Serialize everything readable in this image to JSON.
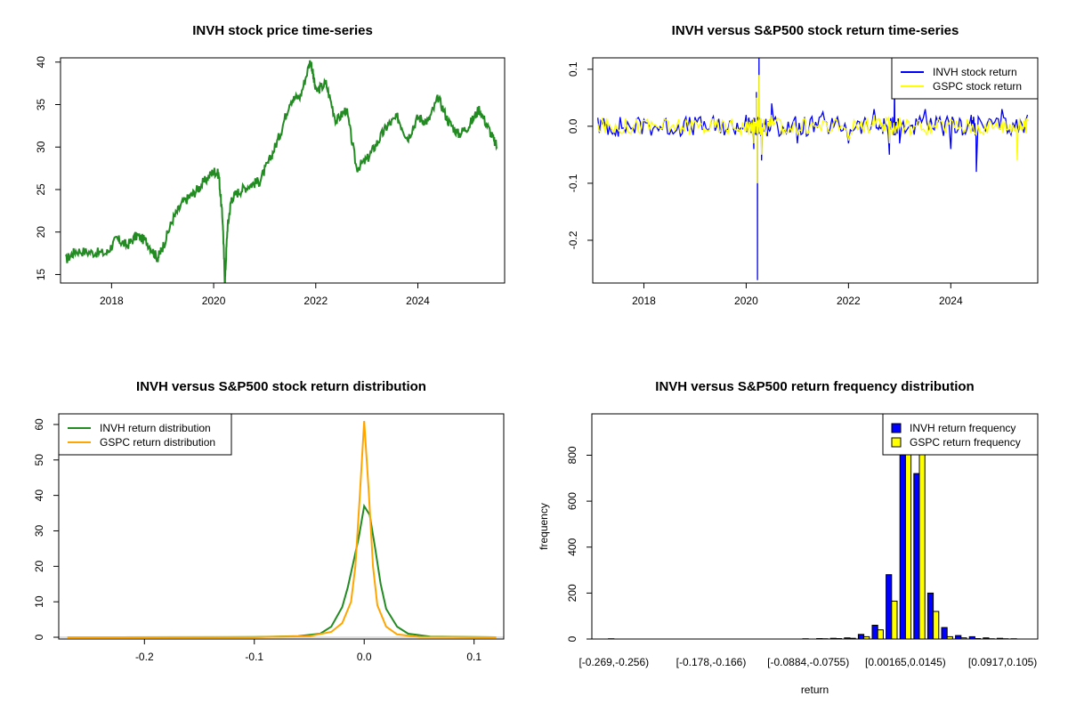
{
  "colors": {
    "green": "#228B22",
    "blue": "#0000FF",
    "yellow": "#FFFF00",
    "orange": "#FFA500",
    "gray": "#BEBEBE"
  },
  "chart_data": [
    {
      "type": "line",
      "title": "INVH stock price time-series",
      "xlabel": "",
      "ylabel": "",
      "xlim": [
        2017.0,
        2025.7
      ],
      "ylim": [
        14,
        40.5
      ],
      "xticks": [
        "2018",
        "2020",
        "2022",
        "2024"
      ],
      "xtick_values": [
        2018,
        2020,
        2022,
        2024
      ],
      "yticks": [
        "15",
        "20",
        "25",
        "30",
        "35",
        "40"
      ],
      "ytick_values": [
        15,
        20,
        25,
        30,
        35,
        40
      ],
      "series": [
        {
          "color": "#228B22",
          "x": [
            2017.1,
            2017.3,
            2017.6,
            2017.9,
            2018.1,
            2018.3,
            2018.5,
            2018.7,
            2018.9,
            2019.0,
            2019.2,
            2019.4,
            2019.6,
            2019.8,
            2020.0,
            2020.1,
            2020.18,
            2020.22,
            2020.27,
            2020.35,
            2020.5,
            2020.7,
            2020.9,
            2021.1,
            2021.3,
            2021.5,
            2021.7,
            2021.9,
            2022.0,
            2022.2,
            2022.4,
            2022.6,
            2022.8,
            2023.0,
            2023.2,
            2023.4,
            2023.6,
            2023.8,
            2024.0,
            2024.2,
            2024.4,
            2024.6,
            2024.8,
            2025.0,
            2025.2,
            2025.4,
            2025.55
          ],
          "y": [
            16.7,
            17.8,
            17.6,
            17.5,
            19.2,
            18.4,
            19.6,
            18.8,
            16.9,
            18.2,
            21.5,
            23.5,
            24.5,
            25.8,
            27.2,
            26.8,
            21.0,
            14.0,
            20.5,
            24.0,
            24.8,
            25.5,
            26.0,
            28.5,
            31.5,
            35.5,
            36.0,
            40.3,
            36.5,
            37.5,
            33.0,
            34.5,
            27.5,
            28.5,
            30.5,
            32.5,
            33.5,
            31.0,
            33.5,
            33.0,
            35.8,
            33.0,
            31.5,
            32.5,
            34.5,
            32.0,
            30.0
          ]
        }
      ]
    },
    {
      "type": "line",
      "title": "INVH versus S&P500 stock return time-series",
      "xlabel": "",
      "ylabel": "",
      "xlim": [
        2017.0,
        2025.7
      ],
      "ylim": [
        -0.275,
        0.12
      ],
      "xticks": [
        "2018",
        "2020",
        "2022",
        "2024"
      ],
      "xtick_values": [
        2018,
        2020,
        2022,
        2024
      ],
      "yticks": [
        "0.1",
        "0.0",
        "-0.1",
        "-0.2"
      ],
      "ytick_values": [
        0.1,
        0.0,
        -0.1,
        -0.2
      ],
      "legend": {
        "position": "top-right",
        "entries": [
          "INVH stock return",
          "GSPC stock return"
        ]
      },
      "series": [
        {
          "name": "INVH stock return",
          "color": "#0000FF",
          "x": [
            2017.1,
            2017.5,
            2018.0,
            2018.5,
            2019.0,
            2019.5,
            2020.0,
            2020.15,
            2020.2,
            2020.22,
            2020.25,
            2020.3,
            2020.5,
            2021.0,
            2021.5,
            2022.0,
            2022.5,
            2022.8,
            2022.9,
            2023.0,
            2023.5,
            2024.0,
            2024.4,
            2024.5,
            2025.0,
            2025.5
          ],
          "y": [
            0.015,
            -0.018,
            0.012,
            -0.014,
            0.016,
            -0.012,
            0.02,
            -0.04,
            0.06,
            -0.27,
            0.12,
            -0.06,
            0.04,
            -0.03,
            0.025,
            -0.03,
            0.03,
            -0.05,
            0.08,
            -0.03,
            0.03,
            -0.04,
            0.02,
            -0.08,
            0.03,
            0.02
          ]
        },
        {
          "name": "GSPC stock return",
          "color": "#FFFF00",
          "x": [
            2017.1,
            2017.5,
            2018.0,
            2018.5,
            2019.0,
            2019.5,
            2020.0,
            2020.15,
            2020.2,
            2020.22,
            2020.25,
            2020.3,
            2020.5,
            2021.0,
            2021.5,
            2022.0,
            2022.5,
            2022.8,
            2023.0,
            2023.5,
            2024.0,
            2024.5,
            2025.0,
            2025.3,
            2025.5
          ],
          "y": [
            0.005,
            -0.006,
            0.01,
            -0.008,
            0.01,
            -0.009,
            0.008,
            -0.03,
            0.05,
            -0.1,
            0.09,
            -0.05,
            0.02,
            -0.015,
            0.01,
            -0.025,
            0.02,
            -0.03,
            0.015,
            -0.01,
            0.012,
            -0.015,
            0.01,
            -0.06,
            0.01
          ]
        }
      ]
    },
    {
      "type": "line",
      "title": "INVH versus S&P500 stock return distribution",
      "xlabel": "",
      "ylabel": "",
      "xlim": [
        -0.278,
        0.127
      ],
      "ylim": [
        -0.5,
        63
      ],
      "xticks": [
        "-0.2",
        "-0.1",
        "0.0",
        "0.1"
      ],
      "xtick_values": [
        -0.2,
        -0.1,
        0.0,
        0.1
      ],
      "yticks": [
        "0",
        "10",
        "20",
        "30",
        "40",
        "50",
        "60"
      ],
      "ytick_values": [
        0,
        10,
        20,
        30,
        40,
        50,
        60
      ],
      "legend": {
        "position": "top-left",
        "entries": [
          "INVH return distribution",
          "GSPC return distribution"
        ]
      },
      "series": [
        {
          "name": "INVH return distribution",
          "color": "#228B22",
          "x": [
            -0.27,
            -0.1,
            -0.06,
            -0.04,
            -0.03,
            -0.02,
            -0.015,
            -0.01,
            -0.005,
            0.0,
            0.005,
            0.01,
            0.015,
            0.02,
            0.03,
            0.04,
            0.06,
            0.12
          ],
          "y": [
            0,
            0.05,
            0.3,
            1.0,
            3.0,
            8.5,
            14.0,
            21.0,
            28.0,
            37.0,
            34.5,
            25.0,
            15.0,
            8.0,
            3.0,
            1.0,
            0.2,
            0
          ]
        },
        {
          "name": "GSPC return distribution",
          "color": "#FFA500",
          "x": [
            -0.27,
            -0.1,
            -0.05,
            -0.03,
            -0.02,
            -0.012,
            -0.008,
            -0.004,
            0.0,
            0.004,
            0.008,
            0.012,
            0.02,
            0.03,
            0.05,
            0.12
          ],
          "y": [
            0,
            0.02,
            0.3,
            1.5,
            4.0,
            10.0,
            20.0,
            40.0,
            61.0,
            42.0,
            20.0,
            9.0,
            3.0,
            0.8,
            0.1,
            0
          ]
        }
      ]
    },
    {
      "type": "bar",
      "title": "INVH versus S&P500 return frequency distribution",
      "xlabel": "return",
      "ylabel": "frequency",
      "ylim": [
        0,
        980
      ],
      "yticks": [
        "0",
        "200",
        "400",
        "600",
        "800"
      ],
      "ytick_values": [
        0,
        200,
        400,
        600,
        800
      ],
      "tick_labels": [
        {
          "label": "[-0.269,-0.256)",
          "bin": 0
        },
        {
          "label": "[-0.178,-0.166)",
          "bin": 7
        },
        {
          "label": "[-0.0884,-0.0755)",
          "bin": 14
        },
        {
          "label": "[0.00165,0.0145)",
          "bin": 21
        },
        {
          "label": "[0.0917,0.105)",
          "bin": 28
        }
      ],
      "legend": {
        "position": "top-right",
        "entries": [
          "INVH return frequency",
          "GSPC return frequency"
        ]
      },
      "series": [
        {
          "name": "INVH return frequency",
          "color": "#0000FF",
          "values": [
            1,
            0,
            0,
            0,
            0,
            0,
            0,
            0,
            0,
            0,
            0,
            0,
            0,
            0,
            1,
            2,
            3,
            5,
            20,
            60,
            280,
            870,
            720,
            200,
            50,
            15,
            10,
            5,
            3,
            1
          ]
        },
        {
          "name": "GSPC return frequency",
          "color": "#FFFF00",
          "values": [
            0,
            0,
            0,
            0,
            0,
            0,
            0,
            0,
            0,
            0,
            0,
            0,
            0,
            0,
            0,
            1,
            2,
            3,
            10,
            40,
            165,
            950,
            860,
            120,
            10,
            5,
            2,
            1,
            1,
            0
          ]
        }
      ]
    }
  ]
}
